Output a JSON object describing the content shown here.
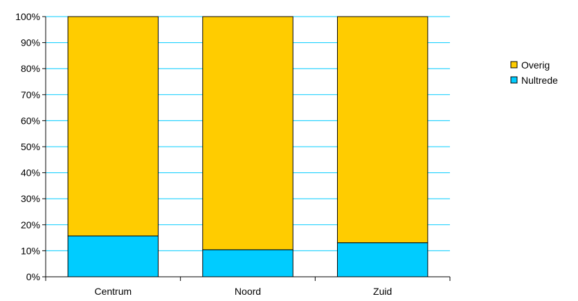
{
  "chart_data": {
    "type": "bar",
    "stacked": "percent",
    "categories": [
      "Centrum",
      "Noord",
      "Zuid"
    ],
    "series": [
      {
        "name": "Nultrede",
        "values": [
          15.7,
          10.4,
          13.1
        ],
        "color": "#00CCFF"
      },
      {
        "name": "Overig",
        "values": [
          84.3,
          89.6,
          86.9
        ],
        "color": "#FFCC00"
      }
    ],
    "ylim": [
      0,
      100
    ],
    "yticks": [
      "0%",
      "10%",
      "20%",
      "30%",
      "40%",
      "50%",
      "60%",
      "70%",
      "80%",
      "90%",
      "100%"
    ],
    "grid": true,
    "grid_color": "#00CCFF",
    "legend": {
      "placement": "right",
      "items": [
        {
          "label": "Overig",
          "color": "#FFCC00"
        },
        {
          "label": "Nultrede",
          "color": "#00CCFF"
        }
      ]
    }
  }
}
